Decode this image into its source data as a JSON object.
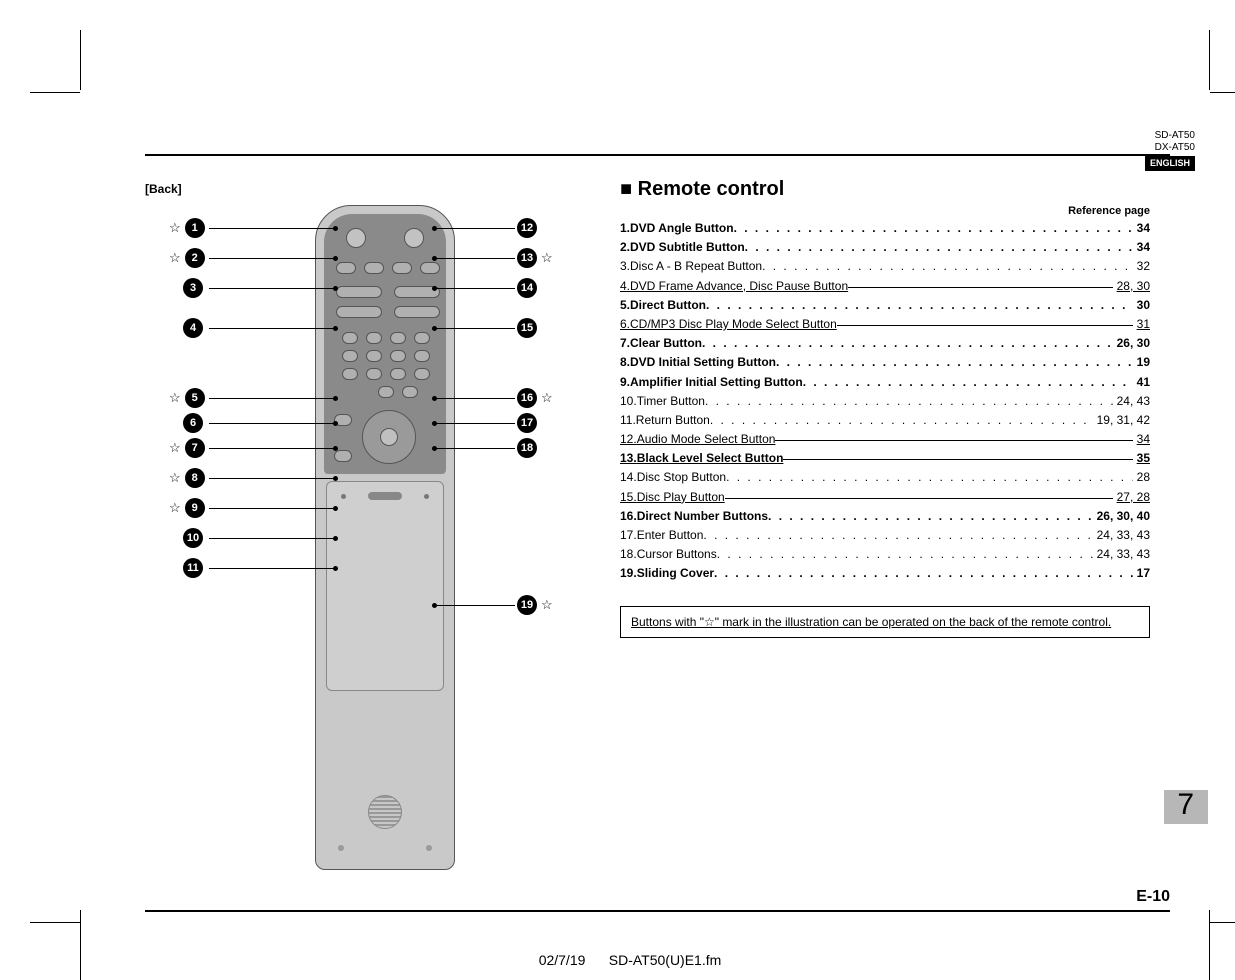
{
  "header": {
    "model1": "SD-AT50",
    "model2": "DX-AT50",
    "lang": "ENGLISH"
  },
  "back_label": "[Back]",
  "section_title": "Remote control",
  "ref_page_label": "Reference page",
  "side_page_number": "7",
  "footer_code": "E-10",
  "footer_date": "02/7/19",
  "footer_file": "SD-AT50(U)E1.fm",
  "note": "Buttons with \"☆\" mark in the illustration can be operated on the back of the remote control.",
  "left_callouts": [
    {
      "n": "1",
      "star": true
    },
    {
      "n": "2",
      "star": true
    },
    {
      "n": "3",
      "star": false
    },
    {
      "n": "4",
      "star": false
    },
    {
      "n": "5",
      "star": true
    },
    {
      "n": "6",
      "star": false
    },
    {
      "n": "7",
      "star": true
    },
    {
      "n": "8",
      "star": true
    },
    {
      "n": "9",
      "star": true
    },
    {
      "n": "10",
      "star": false
    },
    {
      "n": "11",
      "star": false
    }
  ],
  "right_callouts": [
    {
      "n": "12",
      "star": false
    },
    {
      "n": "13",
      "star": true
    },
    {
      "n": "14",
      "star": false
    },
    {
      "n": "15",
      "star": false
    },
    {
      "n": "16",
      "star": true
    },
    {
      "n": "17",
      "star": false
    },
    {
      "n": "18",
      "star": false
    },
    {
      "n": "19",
      "star": true
    }
  ],
  "toc": [
    {
      "n": "1.",
      "label": "DVD Angle Button",
      "page": "34",
      "bold": true,
      "ul": false
    },
    {
      "n": "2.",
      "label": "DVD Subtitle Button",
      "page": "34",
      "bold": true,
      "ul": false
    },
    {
      "n": "3.",
      "label": "Disc A - B Repeat Button",
      "page": "32",
      "bold": false,
      "ul": false
    },
    {
      "n": "4.",
      "label": "DVD Frame Advance, Disc Pause Button",
      "page": "28, 30",
      "bold": false,
      "ul": true
    },
    {
      "n": "5.",
      "label": "Direct Button",
      "page": "30",
      "bold": true,
      "ul": false
    },
    {
      "n": "6.",
      "label": "CD/MP3 Disc Play Mode Select Button",
      "page": "31",
      "bold": false,
      "ul": true
    },
    {
      "n": "7.",
      "label": "Clear Button",
      "page": "26, 30",
      "bold": true,
      "ul": false
    },
    {
      "n": "8.",
      "label": "DVD Initial Setting Button",
      "page": "19",
      "bold": true,
      "ul": false
    },
    {
      "n": "9.",
      "label": "Amplifier Initial Setting Button",
      "page": "41",
      "bold": true,
      "ul": false
    },
    {
      "n": "10.",
      "label": "Timer Button",
      "page": "24, 43",
      "bold": false,
      "ul": false
    },
    {
      "n": "11.",
      "label": "Return Button",
      "page": "19, 31, 42",
      "bold": false,
      "ul": false
    },
    {
      "n": "12.",
      "label": "Audio Mode Select Button",
      "page": "34",
      "bold": false,
      "ul": true
    },
    {
      "n": "13.",
      "label": "Black Level Select Button",
      "page": "35",
      "bold": true,
      "ul": true
    },
    {
      "n": "14.",
      "label": "Disc Stop Button",
      "page": "28",
      "bold": false,
      "ul": false
    },
    {
      "n": "15.",
      "label": "Disc Play Button",
      "page": "27, 28",
      "bold": false,
      "ul": true
    },
    {
      "n": "16.",
      "label": "Direct Number Buttons",
      "page": "26, 30, 40",
      "bold": true,
      "ul": false
    },
    {
      "n": "17.",
      "label": "Enter Button",
      "page": "24, 33, 43",
      "bold": false,
      "ul": false
    },
    {
      "n": "18.",
      "label": "Cursor Buttons",
      "page": "24, 33, 43",
      "bold": false,
      "ul": false
    },
    {
      "n": "19.",
      "label": "Sliding Cover",
      "page": "17",
      "bold": true,
      "ul": false
    }
  ],
  "left_y": [
    178,
    208,
    238,
    278,
    348,
    373,
    398,
    428,
    458,
    488,
    518
  ],
  "right_y": [
    178,
    208,
    238,
    278,
    348,
    373,
    398,
    555
  ]
}
